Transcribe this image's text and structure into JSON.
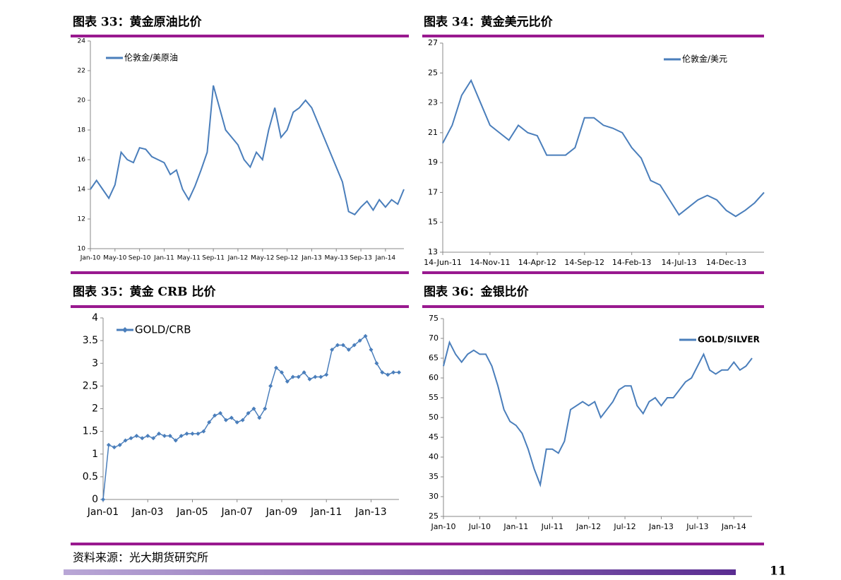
{
  "chart_data": [
    {
      "type": "line",
      "title": "图表 33：黄金原油比价",
      "categories": [
        "Jan-10",
        null,
        null,
        null,
        "May-10",
        null,
        null,
        null,
        "Sep-10",
        null,
        null,
        null,
        "Jan-11",
        null,
        null,
        null,
        "May-11",
        null,
        null,
        null,
        "Sep-11",
        null,
        null,
        null,
        "Jan-12",
        null,
        null,
        null,
        "May-12",
        null,
        null,
        null,
        "Sep-12",
        null,
        null,
        null,
        "Jan-13",
        null,
        null,
        null,
        "May-13",
        null,
        null,
        null,
        "Sep-13",
        null,
        null,
        null,
        "Jan-14",
        null,
        null,
        null
      ],
      "series": [
        {
          "name": "伦敦金/美原油",
          "color": "#4a7ebb",
          "values": [
            14.0,
            14.6,
            14.0,
            13.4,
            14.3,
            16.5,
            16.0,
            15.8,
            16.8,
            16.7,
            16.2,
            16.0,
            15.8,
            15.0,
            15.3,
            14.0,
            13.3,
            14.2,
            15.3,
            16.5,
            21.0,
            19.5,
            18.0,
            17.5,
            17.0,
            16.0,
            15.5,
            16.5,
            16.0,
            18.0,
            19.5,
            17.5,
            18.0,
            19.2,
            19.5,
            20.0,
            19.5,
            18.5,
            17.5,
            16.5,
            15.5,
            14.5,
            12.5,
            12.3,
            12.8,
            13.2,
            12.6,
            13.3,
            12.8,
            13.3,
            13.0,
            14.0
          ]
        }
      ],
      "ylim": [
        10,
        24
      ],
      "yticks": [
        10,
        12,
        14,
        16,
        18,
        20,
        22,
        24
      ]
    },
    {
      "type": "line",
      "title": "图表 34：黄金美元比价",
      "categories": [
        "14-Jun-11",
        null,
        null,
        null,
        null,
        "14-Nov-11",
        null,
        null,
        null,
        null,
        "14-Apr-12",
        null,
        null,
        null,
        null,
        "14-Sep-12",
        null,
        null,
        null,
        null,
        "14-Feb-13",
        null,
        null,
        null,
        null,
        "14-Jul-13",
        null,
        null,
        null,
        null,
        "14-Dec-13",
        null,
        null,
        null,
        null
      ],
      "series": [
        {
          "name": "伦敦金/美元",
          "color": "#4a7ebb",
          "values": [
            20.3,
            21.5,
            23.5,
            24.5,
            23.0,
            21.5,
            21.0,
            20.5,
            21.5,
            21.0,
            20.8,
            19.5,
            19.5,
            19.5,
            20.0,
            22.0,
            22.0,
            21.5,
            21.3,
            21.0,
            20.0,
            19.3,
            17.8,
            17.5,
            16.5,
            15.5,
            16.0,
            16.5,
            16.8,
            16.5,
            15.8,
            15.4,
            15.8,
            16.3,
            17.0
          ]
        }
      ],
      "ylim": [
        13,
        27
      ],
      "yticks": [
        13,
        15,
        17,
        19,
        21,
        23,
        25,
        27
      ]
    },
    {
      "type": "line",
      "title": "图表 35：黄金 CRB 比价",
      "categories": [
        "Jan-01",
        null,
        null,
        null,
        null,
        null,
        null,
        null,
        "Jan-03",
        null,
        null,
        null,
        null,
        null,
        null,
        null,
        "Jan-05",
        null,
        null,
        null,
        null,
        null,
        null,
        null,
        "Jan-07",
        null,
        null,
        null,
        null,
        null,
        null,
        null,
        "Jan-09",
        null,
        null,
        null,
        null,
        null,
        null,
        null,
        "Jan-11",
        null,
        null,
        null,
        null,
        null,
        null,
        null,
        "Jan-13",
        null,
        null,
        null,
        null,
        null
      ],
      "series": [
        {
          "name": "GOLD/CRB",
          "color": "#4a7ebb",
          "marker": "diamond",
          "values": [
            0,
            1.2,
            1.15,
            1.2,
            1.3,
            1.35,
            1.4,
            1.35,
            1.4,
            1.35,
            1.45,
            1.4,
            1.4,
            1.3,
            1.4,
            1.45,
            1.45,
            1.45,
            1.5,
            1.7,
            1.85,
            1.9,
            1.75,
            1.8,
            1.7,
            1.75,
            1.9,
            2.0,
            1.8,
            2.0,
            2.5,
            2.9,
            2.8,
            2.6,
            2.7,
            2.7,
            2.8,
            2.65,
            2.7,
            2.7,
            2.75,
            3.3,
            3.4,
            3.4,
            3.3,
            3.4,
            3.5,
            3.6,
            3.3,
            3.0,
            2.8,
            2.75,
            2.8,
            2.8
          ]
        }
      ],
      "ylim": [
        0,
        4
      ],
      "yticks": [
        0,
        0.5,
        1,
        1.5,
        2,
        2.5,
        3,
        3.5,
        4
      ]
    },
    {
      "type": "line",
      "title": "图表 36：金银比价",
      "categories": [
        "Jan-10",
        null,
        null,
        null,
        null,
        null,
        "Jul-10",
        null,
        null,
        null,
        null,
        null,
        "Jan-11",
        null,
        null,
        null,
        null,
        null,
        "Jul-11",
        null,
        null,
        null,
        null,
        null,
        "Jan-12",
        null,
        null,
        null,
        null,
        null,
        "Jul-12",
        null,
        null,
        null,
        null,
        null,
        "Jan-13",
        null,
        null,
        null,
        null,
        null,
        "Jul-13",
        null,
        null,
        null,
        null,
        null,
        "Jan-14",
        null,
        null,
        null
      ],
      "series": [
        {
          "name": "GOLD/SILVER",
          "color": "#4a7ebb",
          "values": [
            63,
            69,
            66,
            64,
            66,
            67,
            66,
            66,
            63,
            58,
            52,
            49,
            48,
            46,
            42,
            37,
            33,
            42,
            42,
            41,
            44,
            52,
            53,
            54,
            53,
            54,
            50,
            52,
            54,
            57,
            58,
            58,
            53,
            51,
            54,
            55,
            53,
            55,
            55,
            57,
            59,
            60,
            63,
            66,
            62,
            61,
            62,
            62,
            64,
            62,
            63,
            65
          ]
        }
      ],
      "ylim": [
        25,
        75
      ],
      "yticks": [
        25,
        30,
        35,
        40,
        45,
        50,
        55,
        60,
        65,
        70,
        75
      ]
    }
  ],
  "source": "资料来源：光大期货研究所",
  "page_number": 11
}
